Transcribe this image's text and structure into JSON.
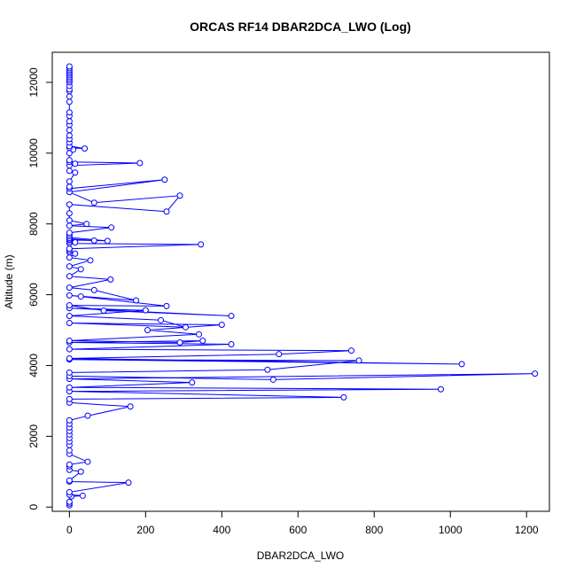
{
  "chart_data": {
    "type": "line",
    "title": "ORCAS RF14 DBAR2DCA_LWO (Log)",
    "xlabel": "DBAR2DCA_LWO",
    "ylabel": "Altitude (m)",
    "xlim": [
      -45,
      1260
    ],
    "ylim": [
      -120,
      12850
    ],
    "xticks": [
      0,
      200,
      400,
      600,
      800,
      1000,
      1200
    ],
    "yticks": [
      0,
      2000,
      4000,
      6000,
      8000,
      10000,
      12000
    ],
    "grid": false,
    "markers": "open-circle",
    "colors": {
      "series": "#0000ff",
      "axes": "#000000",
      "background": "#ffffff"
    },
    "series": [
      {
        "values": [
          [
            0,
            50
          ],
          [
            0,
            100
          ],
          [
            0,
            150
          ],
          [
            5,
            300
          ],
          [
            35,
            320
          ],
          [
            0,
            350
          ],
          [
            0,
            420
          ],
          [
            155,
            690
          ],
          [
            0,
            720
          ],
          [
            0,
            750
          ],
          [
            30,
            1000
          ],
          [
            0,
            1050
          ],
          [
            0,
            1150
          ],
          [
            0,
            1200
          ],
          [
            48,
            1280
          ],
          [
            0,
            1500
          ],
          [
            0,
            1600
          ],
          [
            0,
            1750
          ],
          [
            0,
            1850
          ],
          [
            0,
            1950
          ],
          [
            0,
            2050
          ],
          [
            0,
            2150
          ],
          [
            0,
            2250
          ],
          [
            0,
            2350
          ],
          [
            0,
            2450
          ],
          [
            48,
            2580
          ],
          [
            160,
            2840
          ],
          [
            0,
            2950
          ],
          [
            0,
            3050
          ],
          [
            720,
            3100
          ],
          [
            0,
            3270
          ],
          [
            975,
            3330
          ],
          [
            0,
            3380
          ],
          [
            322,
            3520
          ],
          [
            0,
            3620
          ],
          [
            1222,
            3770
          ],
          [
            535,
            3600
          ],
          [
            0,
            3700
          ],
          [
            0,
            3800
          ],
          [
            520,
            3880
          ],
          [
            760,
            4140
          ],
          [
            0,
            4170
          ],
          [
            1030,
            4040
          ],
          [
            0,
            4200
          ],
          [
            550,
            4320
          ],
          [
            740,
            4420
          ],
          [
            0,
            4460
          ],
          [
            425,
            4600
          ],
          [
            0,
            4650
          ],
          [
            350,
            4700
          ],
          [
            290,
            4650
          ],
          [
            0,
            4700
          ],
          [
            340,
            4880
          ],
          [
            205,
            5000
          ],
          [
            400,
            5150
          ],
          [
            0,
            5200
          ],
          [
            305,
            5080
          ],
          [
            240,
            5280
          ],
          [
            0,
            5400
          ],
          [
            200,
            5560
          ],
          [
            0,
            5620
          ],
          [
            425,
            5400
          ],
          [
            90,
            5550
          ],
          [
            0,
            5700
          ],
          [
            255,
            5680
          ],
          [
            30,
            5950
          ],
          [
            0,
            5980
          ],
          [
            175,
            5840
          ],
          [
            65,
            6130
          ],
          [
            0,
            6200
          ],
          [
            108,
            6430
          ],
          [
            0,
            6520
          ],
          [
            30,
            6720
          ],
          [
            0,
            6800
          ],
          [
            55,
            6970
          ],
          [
            0,
            7050
          ],
          [
            15,
            7160
          ],
          [
            0,
            7200
          ],
          [
            0,
            7250
          ],
          [
            0,
            7300
          ],
          [
            345,
            7420
          ],
          [
            0,
            7450
          ],
          [
            15,
            7480
          ],
          [
            0,
            7500
          ],
          [
            0,
            7550
          ],
          [
            65,
            7530
          ],
          [
            0,
            7580
          ],
          [
            0,
            7620
          ],
          [
            100,
            7520
          ],
          [
            0,
            7560
          ],
          [
            0,
            7600
          ],
          [
            0,
            7650
          ],
          [
            0,
            7700
          ],
          [
            0,
            7750
          ],
          [
            110,
            7900
          ],
          [
            0,
            7950
          ],
          [
            45,
            8000
          ],
          [
            0,
            8100
          ],
          [
            0,
            8300
          ],
          [
            0,
            8550
          ],
          [
            255,
            8350
          ],
          [
            290,
            8800
          ],
          [
            65,
            8600
          ],
          [
            0,
            8900
          ],
          [
            250,
            9250
          ],
          [
            0,
            9000
          ],
          [
            0,
            9050
          ],
          [
            0,
            9200
          ],
          [
            15,
            9450
          ],
          [
            0,
            9500
          ],
          [
            0,
            9650
          ],
          [
            185,
            9720
          ],
          [
            0,
            9750
          ],
          [
            15,
            9700
          ],
          [
            0,
            9800
          ],
          [
            0,
            10000
          ],
          [
            10,
            10100
          ],
          [
            0,
            10150
          ],
          [
            40,
            10130
          ],
          [
            0,
            10200
          ],
          [
            0,
            10300
          ],
          [
            0,
            10400
          ],
          [
            0,
            10500
          ],
          [
            0,
            10650
          ],
          [
            0,
            10800
          ],
          [
            0,
            10900
          ],
          [
            0,
            11050
          ],
          [
            0,
            11150
          ],
          [
            0,
            11450
          ],
          [
            0,
            11600
          ],
          [
            0,
            11750
          ],
          [
            0,
            11800
          ],
          [
            0,
            11900
          ],
          [
            0,
            12000
          ],
          [
            0,
            12050
          ],
          [
            0,
            12100
          ],
          [
            0,
            12150
          ],
          [
            0,
            12200
          ],
          [
            0,
            12250
          ],
          [
            0,
            12300
          ],
          [
            0,
            12350
          ],
          [
            0,
            12400
          ],
          [
            0,
            12450
          ]
        ]
      }
    ]
  }
}
